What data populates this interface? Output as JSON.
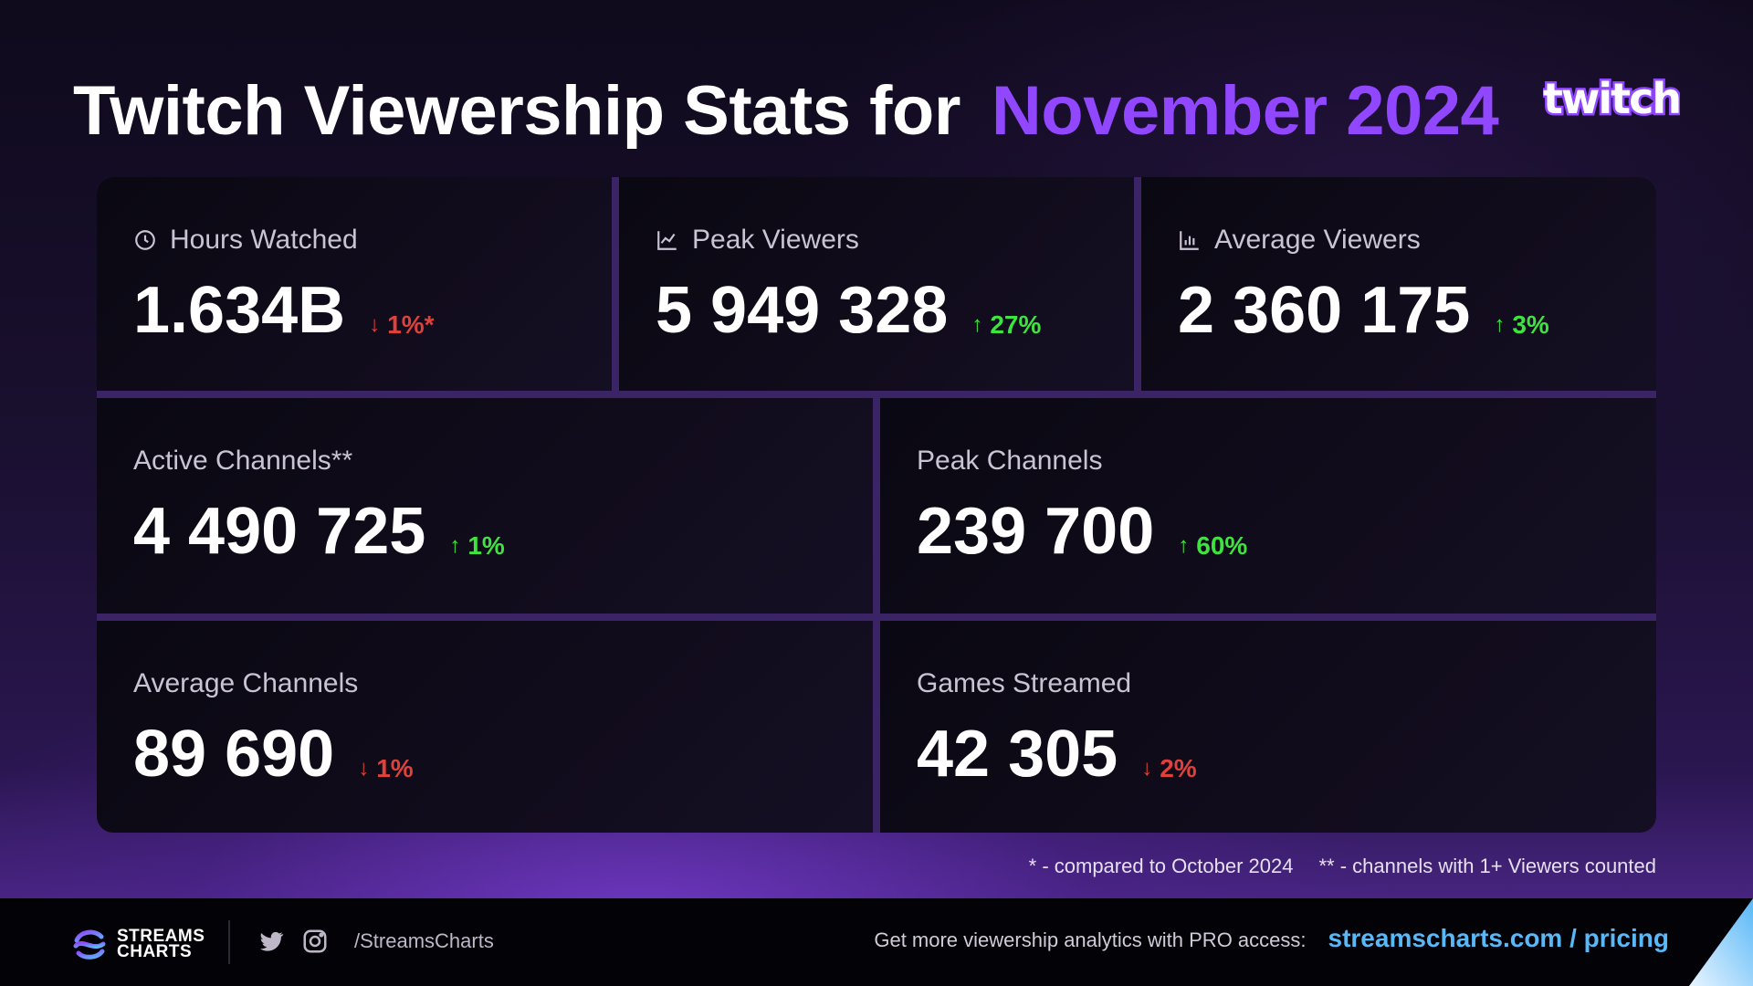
{
  "header": {
    "title": "Twitch Viewership Stats for",
    "period": "November 2024",
    "logo_text": "twitch",
    "accent_color": "#9146ff"
  },
  "cards": [
    {
      "label": "Hours Watched",
      "icon": "clock-icon",
      "value": "1.634B",
      "delta": "1%*",
      "direction": "down"
    },
    {
      "label": "Peak Viewers",
      "icon": "chart-line-icon",
      "value": "5 949 328",
      "delta": "27%",
      "direction": "up"
    },
    {
      "label": "Average Viewers",
      "icon": "chart-bar-icon",
      "value": "2 360 175",
      "delta": "3%",
      "direction": "up"
    },
    {
      "label": "Active Channels**",
      "icon": "",
      "value": "4 490 725",
      "delta": "1%",
      "direction": "up"
    },
    {
      "label": "Peak Channels",
      "icon": "",
      "value": "239 700",
      "delta": "60%",
      "direction": "up"
    },
    {
      "label": "Average Channels",
      "icon": "",
      "value": "89 690",
      "delta": "1%",
      "direction": "down"
    },
    {
      "label": "Games Streamed",
      "icon": "",
      "value": "42 305",
      "delta": "2%",
      "direction": "down"
    }
  ],
  "footnotes": {
    "note1": "* - compared to October 2024",
    "note2": "** - channels with 1+ Viewers counted"
  },
  "footer": {
    "brand_line1": "STREAMS",
    "brand_line2": "CHARTS",
    "handle": "/StreamsCharts",
    "cta_text": "Get more viewership analytics with PRO access:",
    "cta_link": "streamscharts.com / pricing"
  },
  "colors": {
    "up": "#3fe33f",
    "down": "#e0413a",
    "link": "#59b8f7"
  }
}
